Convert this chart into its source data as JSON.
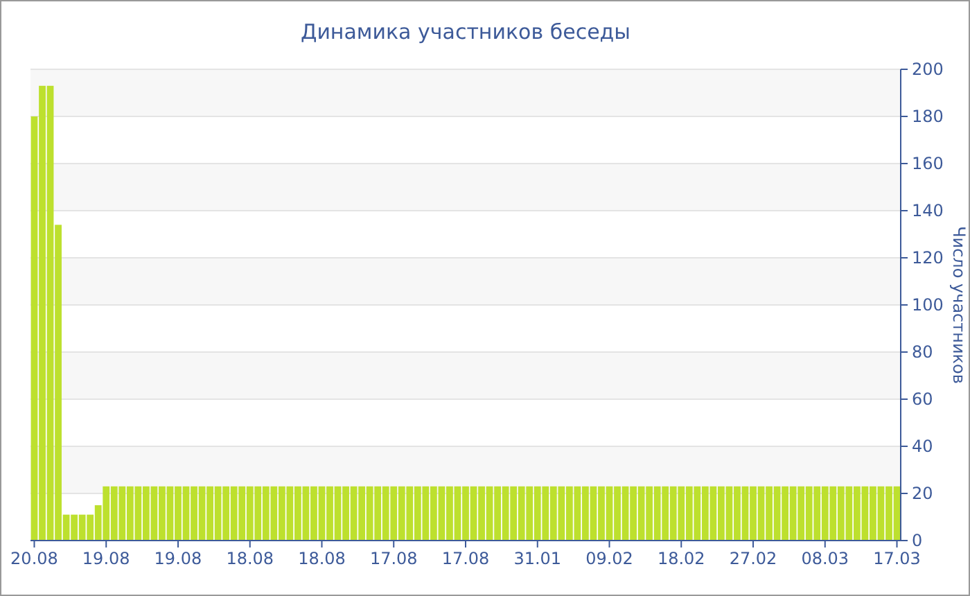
{
  "chart_data": {
    "type": "bar",
    "title": "Динамика участников беседы",
    "ylabel": "Число участников",
    "categories": [
      "20.08",
      null,
      null,
      null,
      null,
      null,
      null,
      null,
      null,
      "19.08",
      null,
      null,
      null,
      null,
      null,
      null,
      null,
      null,
      "19.08",
      null,
      null,
      null,
      null,
      null,
      null,
      null,
      null,
      "18.08",
      null,
      null,
      null,
      null,
      null,
      null,
      null,
      null,
      "18.08",
      null,
      null,
      null,
      null,
      null,
      null,
      null,
      null,
      "17.08",
      null,
      null,
      null,
      null,
      null,
      null,
      null,
      null,
      "17.08",
      null,
      null,
      null,
      null,
      null,
      null,
      null,
      null,
      "31.01",
      null,
      null,
      null,
      null,
      null,
      null,
      null,
      null,
      "09.02",
      null,
      null,
      null,
      null,
      null,
      null,
      null,
      null,
      "18.02",
      null,
      null,
      null,
      null,
      null,
      null,
      null,
      null,
      "27.02",
      null,
      null,
      null,
      null,
      null,
      null,
      null,
      null,
      "08.03",
      null,
      null,
      null,
      null,
      null,
      null,
      null,
      null,
      "17.03"
    ],
    "values": [
      180,
      193,
      193,
      134,
      11,
      11,
      11,
      11,
      15,
      23,
      23,
      23,
      23,
      23,
      23,
      23,
      23,
      23,
      23,
      23,
      23,
      23,
      23,
      23,
      23,
      23,
      23,
      23,
      23,
      23,
      23,
      23,
      23,
      23,
      23,
      23,
      23,
      23,
      23,
      23,
      23,
      23,
      23,
      23,
      23,
      23,
      23,
      23,
      23,
      23,
      23,
      23,
      23,
      23,
      23,
      23,
      23,
      23,
      23,
      23,
      23,
      23,
      23,
      23,
      23,
      23,
      23,
      23,
      23,
      23,
      23,
      23,
      23,
      23,
      23,
      23,
      23,
      23,
      23,
      23,
      23,
      23,
      23,
      23,
      23,
      23,
      23,
      23,
      23,
      23,
      23,
      23,
      23,
      23,
      23,
      23,
      23,
      23,
      23,
      23,
      23,
      23,
      23,
      23,
      23,
      23,
      23,
      23,
      23
    ],
    "color": "#bde02e",
    "ylim": [
      0,
      200
    ],
    "yticks": [
      0,
      20,
      40,
      60,
      80,
      100,
      120,
      140,
      160,
      180,
      200
    ],
    "grid": "y"
  }
}
